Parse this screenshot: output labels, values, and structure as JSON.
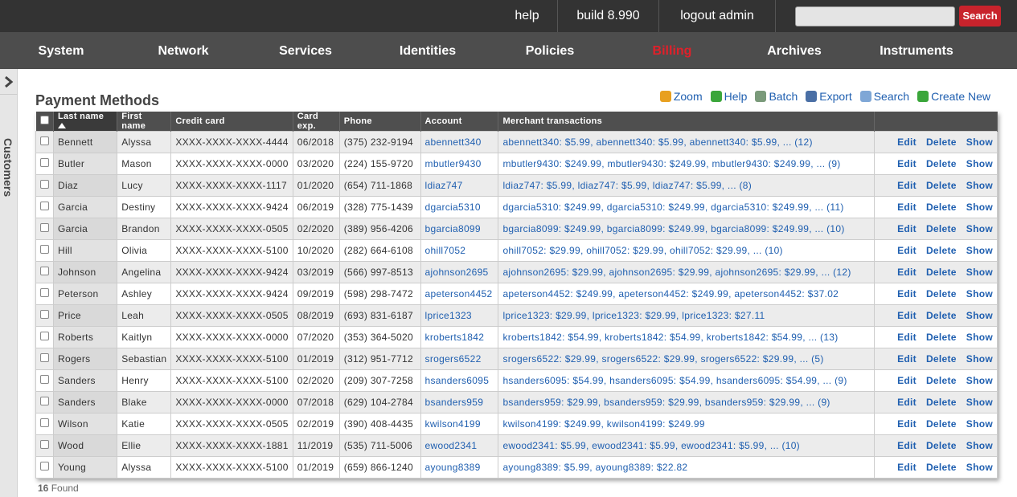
{
  "topbar": {
    "links": [
      "help",
      "build 8.990",
      "logout admin"
    ],
    "search_button": "Search"
  },
  "nav": {
    "items": [
      "System",
      "Network",
      "Services",
      "Identities",
      "Policies",
      "Billing",
      "Archives",
      "Instruments"
    ],
    "active": 5
  },
  "sidebar": {
    "label": "Customers"
  },
  "page": {
    "title": "Payment Methods",
    "toolbar": [
      "Zoom",
      "Help",
      "Batch",
      "Export",
      "Search",
      "Create New"
    ]
  },
  "table": {
    "columns": [
      "Last name",
      "First name",
      "Credit card",
      "Card exp.",
      "Phone",
      "Account",
      "Merchant transactions"
    ],
    "row_actions": [
      "Edit",
      "Delete",
      "Show"
    ],
    "rows": [
      [
        "Bennett",
        "Alyssa",
        "XXXX-XXXX-XXXX-4444",
        "06/2018",
        "(375) 232-9194",
        "abennett340",
        "abennett340: $5.99, abennett340: $5.99, abennett340: $5.99, ... (12)"
      ],
      [
        "Butler",
        "Mason",
        "XXXX-XXXX-XXXX-0000",
        "03/2020",
        "(224) 155-9720",
        "mbutler9430",
        "mbutler9430: $249.99, mbutler9430: $249.99, mbutler9430: $249.99, ... (9)"
      ],
      [
        "Diaz",
        "Lucy",
        "XXXX-XXXX-XXXX-1117",
        "01/2020",
        "(654) 711-1868",
        "ldiaz747",
        "ldiaz747: $5.99, ldiaz747: $5.99, ldiaz747: $5.99, ... (8)"
      ],
      [
        "Garcia",
        "Destiny",
        "XXXX-XXXX-XXXX-9424",
        "06/2019",
        "(328) 775-1439",
        "dgarcia5310",
        "dgarcia5310: $249.99, dgarcia5310: $249.99, dgarcia5310: $249.99, ... (11)"
      ],
      [
        "Garcia",
        "Brandon",
        "XXXX-XXXX-XXXX-0505",
        "02/2020",
        "(389) 956-4206",
        "bgarcia8099",
        "bgarcia8099: $249.99, bgarcia8099: $249.99, bgarcia8099: $249.99, ... (10)"
      ],
      [
        "Hill",
        "Olivia",
        "XXXX-XXXX-XXXX-5100",
        "10/2020",
        "(282) 664-6108",
        "ohill7052",
        "ohill7052: $29.99, ohill7052: $29.99, ohill7052: $29.99, ... (10)"
      ],
      [
        "Johnson",
        "Angelina",
        "XXXX-XXXX-XXXX-9424",
        "03/2019",
        "(566) 997-8513",
        "ajohnson2695",
        "ajohnson2695: $29.99, ajohnson2695: $29.99, ajohnson2695: $29.99, ... (12)"
      ],
      [
        "Peterson",
        "Ashley",
        "XXXX-XXXX-XXXX-9424",
        "09/2019",
        "(598) 298-7472",
        "apeterson4452",
        "apeterson4452: $249.99, apeterson4452: $249.99, apeterson4452: $37.02"
      ],
      [
        "Price",
        "Leah",
        "XXXX-XXXX-XXXX-0505",
        "08/2019",
        "(693) 831-6187",
        "lprice1323",
        "lprice1323: $29.99, lprice1323: $29.99, lprice1323: $27.11"
      ],
      [
        "Roberts",
        "Kaitlyn",
        "XXXX-XXXX-XXXX-0000",
        "07/2020",
        "(353) 364-5020",
        "kroberts1842",
        "kroberts1842: $54.99, kroberts1842: $54.99, kroberts1842: $54.99, ... (13)"
      ],
      [
        "Rogers",
        "Sebastian",
        "XXXX-XXXX-XXXX-5100",
        "01/2019",
        "(312) 951-7712",
        "srogers6522",
        "srogers6522: $29.99, srogers6522: $29.99, srogers6522: $29.99, ... (5)"
      ],
      [
        "Sanders",
        "Henry",
        "XXXX-XXXX-XXXX-5100",
        "02/2020",
        "(209) 307-7258",
        "hsanders6095",
        "hsanders6095: $54.99, hsanders6095: $54.99, hsanders6095: $54.99, ... (9)"
      ],
      [
        "Sanders",
        "Blake",
        "XXXX-XXXX-XXXX-0000",
        "07/2018",
        "(629) 104-2784",
        "bsanders959",
        "bsanders959: $29.99, bsanders959: $29.99, bsanders959: $29.99, ... (9)"
      ],
      [
        "Wilson",
        "Katie",
        "XXXX-XXXX-XXXX-0505",
        "02/2019",
        "(390) 408-4435",
        "kwilson4199",
        "kwilson4199: $249.99, kwilson4199: $249.99"
      ],
      [
        "Wood",
        "Ellie",
        "XXXX-XXXX-XXXX-1881",
        "11/2019",
        "(535) 711-5006",
        "ewood2341",
        "ewood2341: $5.99, ewood2341: $5.99, ewood2341: $5.99, ... (10)"
      ],
      [
        "Young",
        "Alyssa",
        "XXXX-XXXX-XXXX-5100",
        "01/2019",
        "(659) 866-1240",
        "ayoung8389",
        "ayoung8389: $5.99, ayoung8389: $22.82"
      ]
    ]
  },
  "footer": {
    "count": 16,
    "label": "Found"
  }
}
